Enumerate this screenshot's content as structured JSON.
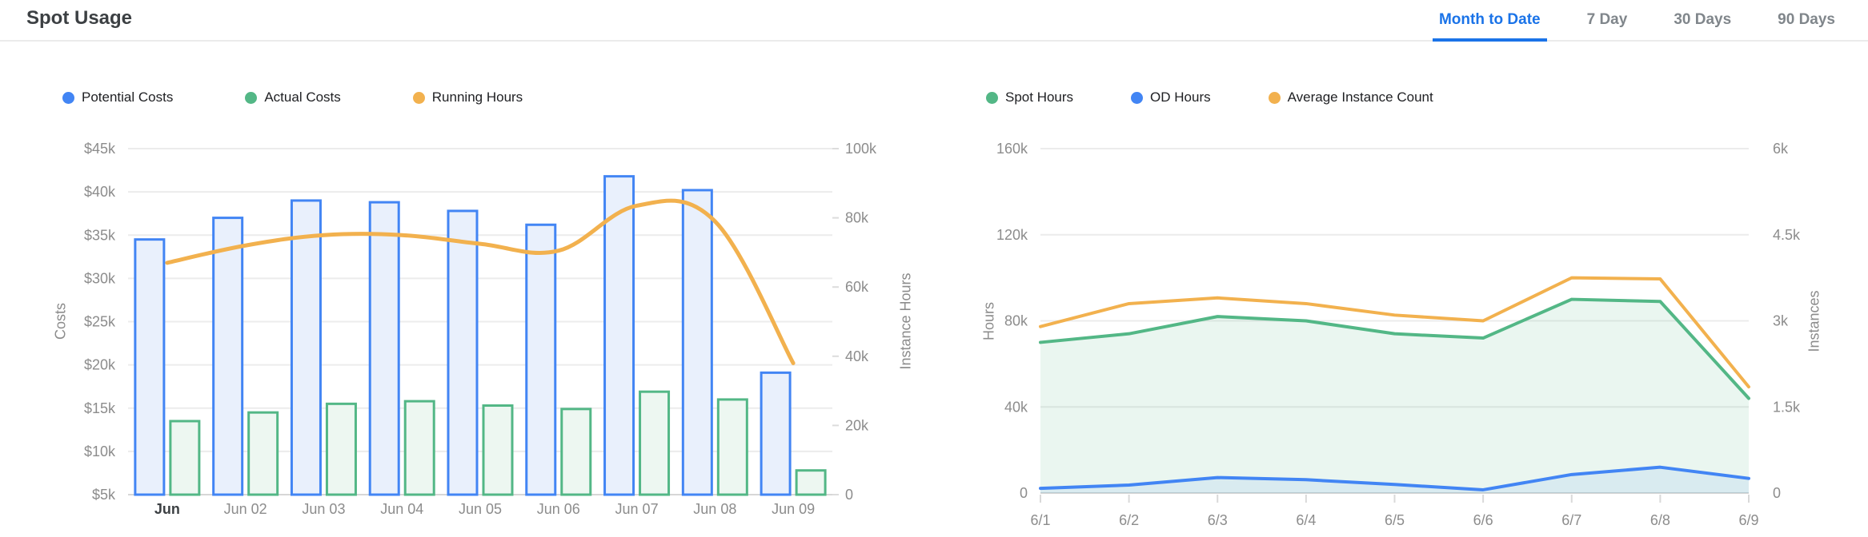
{
  "header": {
    "title": "Spot Usage",
    "tabs": [
      {
        "label": "Month to Date",
        "active": true
      },
      {
        "label": "7 Day",
        "active": false
      },
      {
        "label": "30 Days",
        "active": false
      },
      {
        "label": "90 Days",
        "active": false
      }
    ]
  },
  "ui_colors": {
    "active_tab": "#1A73E8",
    "inactive_tab": "#80868B",
    "title_text": "#3C4043",
    "axis_text": "#8C8C8C",
    "first_x_label_text": "#3C4043",
    "grid_line": "#ECECEC",
    "axis_line": "#D6D6D6",
    "legend_text": "#202124"
  },
  "chart_data": [
    {
      "type": "bar",
      "categories": [
        "Jun",
        "Jun 02",
        "Jun 03",
        "Jun 04",
        "Jun 05",
        "Jun 06",
        "Jun 07",
        "Jun 08",
        "Jun 09"
      ],
      "series": [
        {
          "name": "Potential Costs",
          "type": "bar",
          "axis": "left",
          "color": "#4285F4",
          "fill": "#E9F0FC",
          "values": [
            34.5,
            37,
            39,
            38.8,
            37.8,
            36.2,
            41.8,
            40.2,
            19.1
          ]
        },
        {
          "name": "Actual Costs",
          "type": "bar",
          "axis": "left",
          "color": "#53B786",
          "fill": "#EDF7F1",
          "values": [
            13.5,
            14.5,
            15.5,
            15.8,
            15.3,
            14.9,
            16.9,
            16,
            7.8
          ]
        },
        {
          "name": "Running Hours",
          "type": "line",
          "axis": "right",
          "color": "#F2B14E",
          "values": [
            67,
            72,
            75,
            75,
            72.5,
            70.5,
            83.5,
            79,
            38
          ]
        }
      ],
      "xlabel": "",
      "ylabel_left": "Costs",
      "ylabel_right": "Instance Hours",
      "yaxis_left": {
        "min": 5,
        "max": 45,
        "step": 5,
        "prefix": "$",
        "suffix": "k"
      },
      "yaxis_right": {
        "min": 0,
        "max": 100,
        "step": 20,
        "prefix": "",
        "suffix": "k"
      },
      "grid": true,
      "legend_position": "top"
    },
    {
      "type": "area",
      "categories": [
        "6/1",
        "6/2",
        "6/3",
        "6/4",
        "6/5",
        "6/6",
        "6/7",
        "6/8",
        "6/9"
      ],
      "series": [
        {
          "name": "Spot Hours",
          "type": "area",
          "axis": "left",
          "color": "#53B786",
          "area_fill": "rgba(83,183,134,0.12)",
          "values": [
            70,
            74,
            82,
            80,
            74,
            72,
            90,
            89,
            44
          ]
        },
        {
          "name": "OD Hours",
          "type": "area",
          "axis": "left",
          "color": "#4285F4",
          "area_fill": "rgba(66,133,244,0.10)",
          "values": [
            2.2,
            3.7,
            7.2,
            6.2,
            4,
            1.5,
            8.6,
            12,
            6.8
          ]
        },
        {
          "name": "Average Instance Count",
          "type": "line",
          "axis": "right",
          "color": "#F2B14E",
          "values": [
            2.9,
            3.3,
            3.4,
            3.3,
            3.1,
            3,
            3.75,
            3.73,
            1.85
          ]
        }
      ],
      "xlabel": "",
      "ylabel_left": "Hours",
      "ylabel_right": "Instances",
      "yaxis_left": {
        "min": 0,
        "max": 160,
        "step": 40,
        "prefix": "",
        "suffix": "k"
      },
      "yaxis_right": {
        "min": 0,
        "max": 6,
        "step": 1.5,
        "prefix": "",
        "suffix": "k"
      },
      "grid": true,
      "legend_position": "top"
    }
  ]
}
